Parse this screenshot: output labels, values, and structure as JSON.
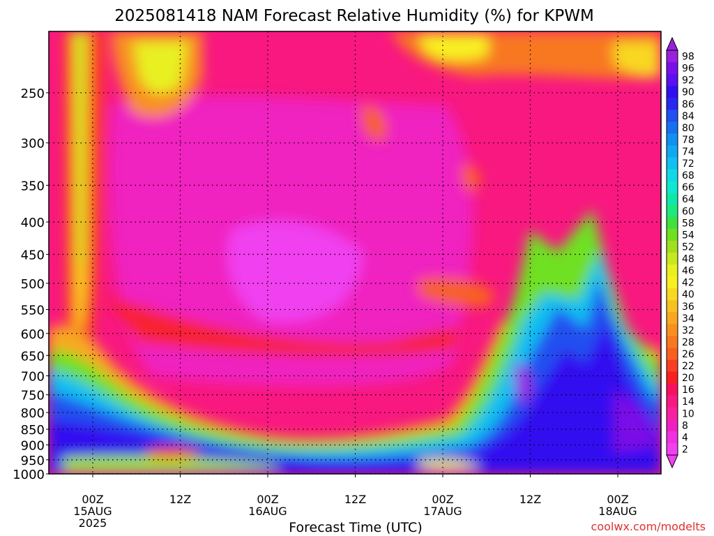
{
  "chart_data": {
    "type": "heatmap",
    "title": "2025081418 NAM Forecast Relative Humidity (%) for KPWM",
    "xlabel": "Forecast Time (UTC)",
    "ylabel": "",
    "credit": "coolwx.com/modelts",
    "y_scale": "log-pressure",
    "y_ticks": [
      "250",
      "300",
      "350",
      "400",
      "450",
      "500",
      "550",
      "600",
      "650",
      "700",
      "750",
      "800",
      "850",
      "900",
      "950",
      "1000"
    ],
    "x_ticks": [
      {
        "hour": "00Z",
        "date": "15AUG",
        "year": "2025"
      },
      {
        "hour": "12Z",
        "date": "",
        "year": ""
      },
      {
        "hour": "00Z",
        "date": "16AUG",
        "year": ""
      },
      {
        "hour": "12Z",
        "date": "",
        "year": ""
      },
      {
        "hour": "00Z",
        "date": "17AUG",
        "year": ""
      },
      {
        "hour": "12Z",
        "date": "",
        "year": ""
      },
      {
        "hour": "00Z",
        "date": "18AUG",
        "year": ""
      }
    ],
    "colorbar_labels": [
      "98",
      "96",
      "92",
      "90",
      "86",
      "84",
      "80",
      "78",
      "74",
      "72",
      "68",
      "66",
      "64",
      "60",
      "58",
      "54",
      "52",
      "48",
      "46",
      "42",
      "40",
      "36",
      "34",
      "32",
      "28",
      "26",
      "22",
      "20",
      "16",
      "14",
      "10",
      "8",
      "4",
      "2"
    ],
    "colorbar_colors": [
      "#9a20e0",
      "#7a10e8",
      "#5a10f0",
      "#3010f0",
      "#2828f0",
      "#2050f0",
      "#1870f0",
      "#1090f0",
      "#10a8f0",
      "#10c0f0",
      "#10d8e8",
      "#10e8d0",
      "#10e8a8",
      "#20e880",
      "#40e040",
      "#70e020",
      "#a0e020",
      "#c8e820",
      "#e8f020",
      "#f8f020",
      "#f8d820",
      "#f8c020",
      "#f8a820",
      "#f89020",
      "#f87820",
      "#f86020",
      "#f84020",
      "#f82020",
      "#f81060",
      "#f81880",
      "#f820a0",
      "#f020c0",
      "#f030e0",
      "#f040f0"
    ],
    "grid": true,
    "ground_color": "#a0522d",
    "summary": {
      "upper_levels_250_400": "mostly 4-20% with 26-46% patches near 15AUG 00Z-12Z and 17AUG 00Z",
      "mid_levels_400_700": "2-10% dry core through 16AUG-17AUG; moist 60-98% plume after 17AUG 12Z",
      "low_levels_800_1000": "moist layer 60-98% near surface, thinnest around 16AUG 12Z"
    }
  }
}
